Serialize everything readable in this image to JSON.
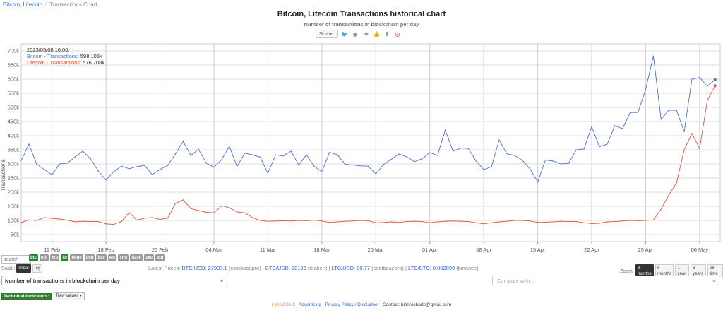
{
  "breadcrumb": {
    "link": "Bitcoin, Litecoin",
    "current": "Transactions Chart"
  },
  "header": {
    "title": "Bitcoin, Litecoin Transactions historical chart",
    "subtitle": "Number of transactions in blockchain per day"
  },
  "share": {
    "label": "Share:",
    "icons": [
      "twitter-icon",
      "reddit-icon",
      "vk-icon",
      "like-icon",
      "facebook-icon",
      "weibo-icon"
    ]
  },
  "tooltip": {
    "date": "2023/05/08 16:00:",
    "btc_label": "Bitcoin - Transactions:",
    "btc_value": "598.105k",
    "ltc_label": "Litecoin - Transactions:",
    "ltc_value": "576.708k"
  },
  "colors": {
    "btc": "#4a6fd4",
    "ltc": "#e0533a",
    "grid": "#dddddd",
    "active_coin": "#2e7d32"
  },
  "search": {
    "placeholder": "search"
  },
  "coins": [
    {
      "label": "btc",
      "active": true
    },
    {
      "label": "eth",
      "active": false
    },
    {
      "label": "xrp",
      "active": false
    },
    {
      "label": "ltc",
      "active": true
    },
    {
      "label": "doge",
      "active": false
    },
    {
      "label": "bch",
      "active": false
    },
    {
      "label": "bsv",
      "active": false
    },
    {
      "label": "etc",
      "active": false
    },
    {
      "label": "xmr",
      "active": false
    },
    {
      "label": "dash",
      "active": false
    },
    {
      "label": "zec",
      "active": false
    },
    {
      "label": "btg",
      "active": false
    }
  ],
  "scale": {
    "label": "Scale:",
    "linear": "linear",
    "log": "log"
  },
  "prices": {
    "label": "Latest Prices:",
    "btc_usd": "BTC/USD: 27937.1",
    "btc_usd_src": "(coinbasepro)",
    "btc_usd2": "BTC/USD: 28196",
    "btc_usd2_src": "(kraken)",
    "ltc_usd": "LTC/USD: 80.77",
    "ltc_usd_src": "(coinbasepro)",
    "ltc_btc": "LTC/BTC: 0.002899",
    "ltc_btc_src": "(binance)"
  },
  "zoom": {
    "label": "Zoom:",
    "options": [
      "3 months",
      "6 months",
      "1 year",
      "3 years",
      "all time"
    ],
    "selected": "3 months"
  },
  "metric_select": {
    "value": "Number of transactions in blockchain per day"
  },
  "compare_select": {
    "placeholder": "Compare with..."
  },
  "technical": {
    "label": "Technical Indicators:",
    "value": "Raw Values"
  },
  "footer": {
    "light": "Light",
    "dark": "Dark",
    "advertising": "Advertising",
    "privacy": "Privacy Policy / Disclaimer",
    "contact": "Contact: bitinfocharts@gmail.com"
  },
  "chart_data": {
    "type": "line",
    "ylabel": "Transactions",
    "ylim": [
      25000,
      725000
    ],
    "y_ticks": [
      50000,
      100000,
      150000,
      200000,
      250000,
      300000,
      350000,
      400000,
      450000,
      500000,
      550000,
      600000,
      650000,
      700000
    ],
    "y_tick_labels": [
      "50k",
      "100k",
      "150k",
      "200k",
      "250k",
      "300k",
      "350k",
      "400k",
      "450k",
      "500k",
      "550k",
      "600k",
      "650k",
      "700k"
    ],
    "x_range": [
      "2023-02-07",
      "2023-05-08"
    ],
    "x_ticks": [
      "2023-02-11",
      "2023-02-18",
      "2023-02-25",
      "2023-03-04",
      "2023-03-11",
      "2023-03-18",
      "2023-03-25",
      "2023-04-01",
      "2023-04-08",
      "2023-04-15",
      "2023-04-22",
      "2023-04-29",
      "2023-05-06"
    ],
    "x_tick_labels": [
      "11 Feb",
      "18 Feb",
      "25 Feb",
      "04 Mar",
      "11 Mar",
      "18 Mar",
      "25 Mar",
      "01 Apr",
      "08 Apr",
      "15 Apr",
      "22 Apr",
      "29 Apr",
      "06 May"
    ],
    "grid": true,
    "series": [
      {
        "name": "Bitcoin - Transactions",
        "color": "#4a6fd4",
        "dates": [
          "2023-02-07",
          "2023-02-08",
          "2023-02-09",
          "2023-02-10",
          "2023-02-11",
          "2023-02-12",
          "2023-02-13",
          "2023-02-14",
          "2023-02-15",
          "2023-02-16",
          "2023-02-17",
          "2023-02-18",
          "2023-02-19",
          "2023-02-20",
          "2023-02-21",
          "2023-02-22",
          "2023-02-23",
          "2023-02-24",
          "2023-02-25",
          "2023-02-26",
          "2023-02-27",
          "2023-02-28",
          "2023-03-01",
          "2023-03-02",
          "2023-03-03",
          "2023-03-04",
          "2023-03-05",
          "2023-03-06",
          "2023-03-07",
          "2023-03-08",
          "2023-03-09",
          "2023-03-10",
          "2023-03-11",
          "2023-03-12",
          "2023-03-13",
          "2023-03-14",
          "2023-03-15",
          "2023-03-16",
          "2023-03-17",
          "2023-03-18",
          "2023-03-19",
          "2023-03-20",
          "2023-03-21",
          "2023-03-22",
          "2023-03-23",
          "2023-03-24",
          "2023-03-25",
          "2023-03-26",
          "2023-03-27",
          "2023-03-28",
          "2023-03-29",
          "2023-03-30",
          "2023-03-31",
          "2023-04-01",
          "2023-04-02",
          "2023-04-03",
          "2023-04-04",
          "2023-04-05",
          "2023-04-06",
          "2023-04-07",
          "2023-04-08",
          "2023-04-09",
          "2023-04-10",
          "2023-04-11",
          "2023-04-12",
          "2023-04-13",
          "2023-04-14",
          "2023-04-15",
          "2023-04-16",
          "2023-04-17",
          "2023-04-18",
          "2023-04-19",
          "2023-04-20",
          "2023-04-21",
          "2023-04-22",
          "2023-04-23",
          "2023-04-24",
          "2023-04-25",
          "2023-04-26",
          "2023-04-27",
          "2023-04-28",
          "2023-04-29",
          "2023-04-30",
          "2023-05-01",
          "2023-05-02",
          "2023-05-03",
          "2023-05-04",
          "2023-05-05",
          "2023-05-06",
          "2023-05-07",
          "2023-05-08"
        ],
        "values": [
          312000,
          370000,
          300000,
          280000,
          262000,
          300000,
          303000,
          325000,
          345000,
          318000,
          275000,
          243000,
          272000,
          292000,
          283000,
          290000,
          295000,
          262000,
          280000,
          295000,
          335000,
          380000,
          330000,
          352000,
          303000,
          288000,
          315000,
          362000,
          291000,
          338000,
          332000,
          324000,
          267000,
          332000,
          328000,
          345000,
          296000,
          332000,
          292000,
          272000,
          341000,
          333000,
          299000,
          296000,
          293000,
          292000,
          265000,
          298000,
          316000,
          335000,
          325000,
          308000,
          318000,
          340000,
          330000,
          420000,
          345000,
          356000,
          355000,
          310000,
          280000,
          290000,
          385000,
          336000,
          330000,
          313000,
          282000,
          236000,
          314000,
          310000,
          300000,
          302000,
          350000,
          353000,
          432000,
          361000,
          370000,
          435000,
          425000,
          482000,
          482000,
          563000,
          682000,
          458000,
          490000,
          490000,
          414000,
          600000,
          606000,
          575000,
          598105
        ]
      },
      {
        "name": "Litecoin - Transactions",
        "color": "#e0533a",
        "dates": [
          "2023-02-07",
          "2023-02-08",
          "2023-02-09",
          "2023-02-10",
          "2023-02-11",
          "2023-02-12",
          "2023-02-13",
          "2023-02-14",
          "2023-02-15",
          "2023-02-16",
          "2023-02-17",
          "2023-02-18",
          "2023-02-19",
          "2023-02-20",
          "2023-02-21",
          "2023-02-22",
          "2023-02-23",
          "2023-02-24",
          "2023-02-25",
          "2023-02-26",
          "2023-02-27",
          "2023-02-28",
          "2023-03-01",
          "2023-03-02",
          "2023-03-03",
          "2023-03-04",
          "2023-03-05",
          "2023-03-06",
          "2023-03-07",
          "2023-03-08",
          "2023-03-09",
          "2023-03-10",
          "2023-03-11",
          "2023-03-12",
          "2023-03-13",
          "2023-03-14",
          "2023-03-15",
          "2023-03-16",
          "2023-03-17",
          "2023-03-18",
          "2023-03-19",
          "2023-03-20",
          "2023-03-21",
          "2023-03-22",
          "2023-03-23",
          "2023-03-24",
          "2023-03-25",
          "2023-03-26",
          "2023-03-27",
          "2023-03-28",
          "2023-03-29",
          "2023-03-30",
          "2023-03-31",
          "2023-04-01",
          "2023-04-02",
          "2023-04-03",
          "2023-04-04",
          "2023-04-05",
          "2023-04-06",
          "2023-04-07",
          "2023-04-08",
          "2023-04-09",
          "2023-04-10",
          "2023-04-11",
          "2023-04-12",
          "2023-04-13",
          "2023-04-14",
          "2023-04-15",
          "2023-04-16",
          "2023-04-17",
          "2023-04-18",
          "2023-04-19",
          "2023-04-20",
          "2023-04-21",
          "2023-04-22",
          "2023-04-23",
          "2023-04-24",
          "2023-04-25",
          "2023-04-26",
          "2023-04-27",
          "2023-04-28",
          "2023-04-29",
          "2023-04-30",
          "2023-05-01",
          "2023-05-02",
          "2023-05-03",
          "2023-05-04",
          "2023-05-05",
          "2023-05-06",
          "2023-05-07",
          "2023-05-08"
        ],
        "values": [
          93000,
          102000,
          100000,
          110000,
          107000,
          105000,
          101000,
          95000,
          97000,
          96000,
          96000,
          88000,
          86000,
          96000,
          128000,
          101000,
          108000,
          110000,
          104000,
          108000,
          160000,
          173000,
          142000,
          135000,
          129000,
          127000,
          152000,
          145000,
          130000,
          127000,
          110000,
          100000,
          97000,
          98000,
          99000,
          98000,
          100000,
          99000,
          101000,
          98000,
          93000,
          95000,
          97000,
          98000,
          100000,
          99000,
          92000,
          93000,
          95000,
          93000,
          96000,
          97000,
          96000,
          92000,
          95000,
          97000,
          98000,
          97000,
          96000,
          92000,
          88000,
          92000,
          95000,
          97000,
          100000,
          100000,
          98000,
          93000,
          94000,
          95000,
          97000,
          96000,
          96000,
          92000,
          89000,
          90000,
          95000,
          96000,
          98000,
          100000,
          99000,
          100000,
          102000,
          140000,
          190000,
          232000,
          350000,
          408000,
          354000,
          525000,
          576708
        ]
      }
    ]
  }
}
